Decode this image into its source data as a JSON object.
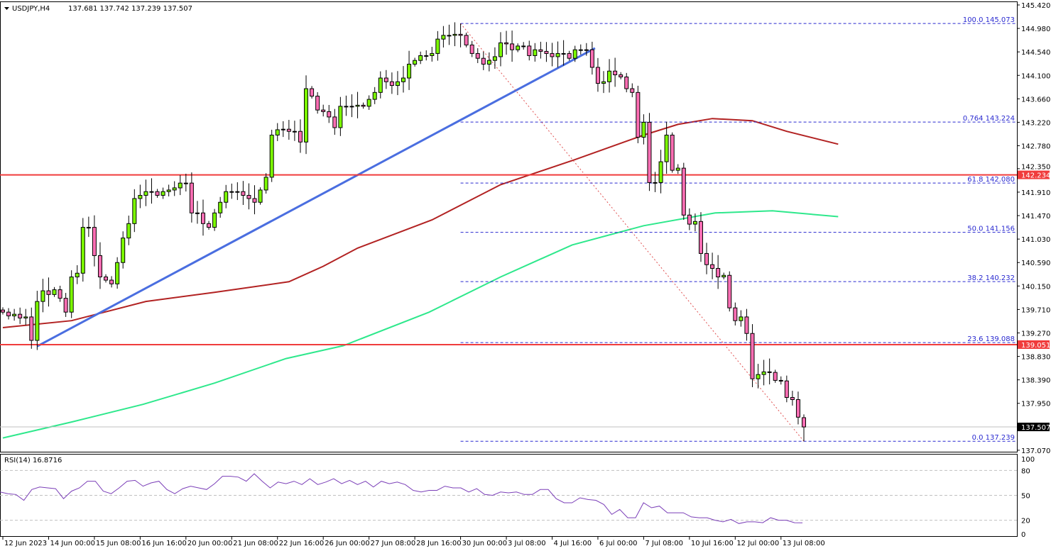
{
  "header": {
    "symbol": "USDJPY,H4",
    "ohlc_text": "137.681 137.742 137.239 137.507",
    "menu_icon": "triangle-down-icon"
  },
  "rsi_header": {
    "label": "RSI(14) 16.8716"
  },
  "colors": {
    "bull": "#7cfc00",
    "bear": "#ff6eb4",
    "ma_red": "#b22222",
    "ma_green": "#2ee88c",
    "trendline": "#4a6ee0",
    "fib": "#2a2ad0",
    "support_resistance": "#f03c3c",
    "rsi": "#7b3fb8"
  },
  "chart_data": [
    {
      "type": "candlestick",
      "title": "USDJPY,H4",
      "ylim": [
        137.07,
        145.42
      ],
      "y_ticks": [
        "145.420",
        "144.980",
        "144.540",
        "144.100",
        "143.660",
        "143.220",
        "142.780",
        "142.350",
        "141.910",
        "141.470",
        "141.030",
        "140.590",
        "140.150",
        "139.710",
        "139.270",
        "138.830",
        "138.390",
        "137.950",
        "137.070"
      ],
      "x_ticks": [
        "12 Jun 2023",
        "14 Jun 00:00",
        "15 Jun 08:00",
        "16 Jun 16:00",
        "20 Jun 00:00",
        "21 Jun 08:00",
        "22 Jun 16:00",
        "26 Jun 00:00",
        "27 Jun 08:00",
        "28 Jun 16:00",
        "30 Jun 00:00",
        "3 Jul 08:00",
        "4 Jul 16:00",
        "6 Jul 00:00",
        "7 Jul 08:00",
        "10 Jul 16:00",
        "12 Jul 00:00",
        "13 Jul 08:00"
      ],
      "first_open": 139.7,
      "close": [
        139.66,
        139.59,
        139.62,
        139.55,
        139.57,
        139.13,
        139.86,
        140.06,
        139.99,
        140.08,
        139.92,
        139.66,
        140.32,
        140.39,
        141.25,
        141.25,
        140.72,
        140.32,
        140.26,
        140.19,
        140.59,
        141.05,
        141.32,
        141.79,
        141.85,
        141.92,
        141.92,
        141.85,
        141.92,
        141.95,
        141.99,
        142.08,
        142.08,
        141.52,
        141.52,
        141.32,
        141.25,
        141.52,
        141.72,
        141.92,
        141.92,
        141.92,
        141.85,
        141.79,
        141.72,
        141.95,
        142.19,
        142.98,
        143.08,
        143.09,
        143.05,
        143.05,
        142.85,
        143.85,
        143.71,
        143.45,
        143.42,
        143.32,
        143.12,
        143.52,
        143.52,
        143.52,
        143.54,
        143.52,
        143.65,
        143.78,
        144.05,
        143.98,
        143.91,
        143.98,
        144.05,
        144.31,
        144.38,
        144.47,
        144.47,
        144.51,
        144.78,
        144.85,
        144.85,
        144.87,
        144.85,
        144.67,
        144.51,
        144.42,
        144.31,
        144.38,
        144.45,
        144.71,
        144.69,
        144.58,
        144.65,
        144.65,
        144.47,
        144.58,
        144.55,
        144.51,
        144.45,
        144.51,
        144.51,
        144.42,
        144.58,
        144.58,
        144.58,
        144.25,
        143.95,
        143.98,
        144.18,
        144.11,
        144.07,
        143.85,
        143.78,
        142.94,
        143.22,
        142.09,
        142.09,
        142.48,
        142.98,
        142.32,
        142.36,
        141.48,
        141.31,
        141.36,
        140.76,
        140.55,
        140.48,
        140.32,
        140.35,
        139.74,
        139.5,
        139.57,
        139.26,
        138.41,
        138.49,
        138.54,
        138.53,
        138.38,
        138.37,
        138.06,
        138.02,
        137.69,
        137.507
      ],
      "last_bar": {
        "open": 137.681,
        "high": 137.742,
        "low": 137.239,
        "close": 137.507
      },
      "moving_averages": [
        {
          "color": "#b22222",
          "points": [
            [
              0,
              139.37
            ],
            [
              12,
              139.5
            ],
            [
              25,
              139.86
            ],
            [
              37,
              140.03
            ],
            [
              50,
              140.23
            ],
            [
              56,
              140.52
            ],
            [
              62,
              140.86
            ],
            [
              75,
              141.39
            ],
            [
              87,
              142.05
            ],
            [
              100,
              142.52
            ],
            [
              112,
              142.98
            ],
            [
              118,
              143.18
            ],
            [
              124,
              143.29
            ],
            [
              131,
              143.25
            ],
            [
              137,
              143.05
            ],
            [
              146,
              142.81
            ]
          ]
        },
        {
          "color": "#2ee88c",
          "points": [
            [
              0,
              137.3
            ],
            [
              12,
              137.6
            ],
            [
              24.5,
              137.93
            ],
            [
              37,
              138.33
            ],
            [
              49.5,
              138.79
            ],
            [
              59.5,
              139.03
            ],
            [
              74.5,
              139.66
            ],
            [
              87,
              140.32
            ],
            [
              99.5,
              140.92
            ],
            [
              112,
              141.28
            ],
            [
              124.5,
              141.52
            ],
            [
              134.5,
              141.56
            ],
            [
              146,
              141.45
            ]
          ]
        }
      ],
      "trendline": {
        "from": [
          6,
          139.02
        ],
        "to": [
          103.5,
          144.61
        ]
      },
      "fibonacci": {
        "from_bar": 80,
        "high": 145.073,
        "low": 137.239,
        "levels": [
          {
            "label": "100.0 145.073",
            "price": 145.073
          },
          {
            "label": "0.764 143.224",
            "price": 143.224
          },
          {
            "label": "61.8 142.080",
            "price": 142.08
          },
          {
            "label": "50.0 141.156",
            "price": 141.156
          },
          {
            "label": "38.2 140.232",
            "price": 140.232
          },
          {
            "label": "23.6 139.088",
            "price": 139.088
          },
          {
            "label": "0.0 137.239",
            "price": 137.239
          }
        ]
      },
      "horizontal_lines": [
        {
          "price": 142.234,
          "label": "142.234",
          "color": "#f03c3c"
        },
        {
          "price": 139.051,
          "label": "139.051",
          "color": "#f03c3c"
        }
      ],
      "current_price": {
        "price": 137.507,
        "label": "137.507"
      }
    },
    {
      "type": "line",
      "title": "RSI(14) 16.8716",
      "ylim": [
        0,
        100
      ],
      "y_ticks": [
        "100",
        "80",
        "50",
        "20",
        "0"
      ],
      "levels": [
        80,
        50,
        20
      ],
      "values": [
        54,
        52,
        51,
        44,
        57,
        60,
        59,
        58,
        46,
        55,
        59,
        67,
        67,
        55,
        52,
        59,
        67,
        68,
        61,
        65,
        67,
        57,
        52,
        58,
        61,
        59,
        57,
        64,
        73,
        73,
        72,
        67,
        76,
        67,
        59,
        66,
        64,
        67,
        63,
        70,
        63,
        66,
        70,
        64,
        68,
        63,
        67,
        60,
        67,
        64,
        66,
        63,
        56,
        54,
        56,
        56,
        61,
        59,
        59,
        54,
        58,
        51,
        50,
        54,
        53,
        54,
        51,
        51,
        57,
        57,
        46,
        41,
        41,
        47,
        45,
        44,
        39,
        27,
        33,
        23,
        23,
        41,
        35,
        37,
        29,
        29,
        29,
        24,
        23,
        23,
        20,
        18,
        21,
        16,
        18,
        18,
        17,
        23,
        20,
        20,
        17,
        16.87
      ]
    }
  ]
}
